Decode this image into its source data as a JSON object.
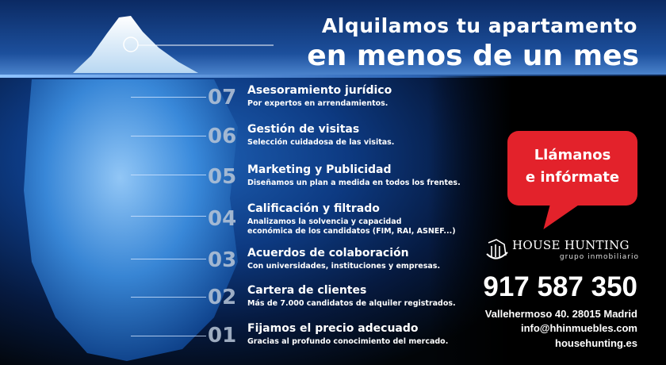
{
  "headline": {
    "line1": "Alquilamos tu apartamento",
    "line2": "en menos de un mes"
  },
  "steps": [
    {
      "number": "07",
      "title": "Asesoramiento jurídico",
      "subtitle": "Por expertos en arrendamientos."
    },
    {
      "number": "06",
      "title": "Gestión de visitas",
      "subtitle": "Selección cuidadosa de las visitas."
    },
    {
      "number": "05",
      "title": "Marketing y Publicidad",
      "subtitle": "Diseñamos un plan a medida  en todos los frentes."
    },
    {
      "number": "04",
      "title": "Calificación y filtrado",
      "subtitle": "Analizamos la solvencia y capacidad",
      "subtitle2": "económica de los candidatos (FIM, RAI, ASNEF...)"
    },
    {
      "number": "03",
      "title": "Acuerdos de colaboración",
      "subtitle": "Con universidades, instituciones y empresas."
    },
    {
      "number": "02",
      "title": "Cartera de clientes",
      "subtitle": "Más de 7.000 candidatos de alquiler registrados."
    },
    {
      "number": "01",
      "title": "Fijamos el precio adecuado",
      "subtitle": "Gracias al profundo conocimiento del mercado."
    }
  ],
  "cta": {
    "line1": "Llámanos",
    "line2": "e infórmate",
    "color": "#e3222b"
  },
  "brand": {
    "name": "HOUSE HUNTING",
    "tagline": "grupo inmobiliario",
    "logo_icon": "house-logo-icon"
  },
  "contact": {
    "phone": "917 587 350",
    "address": "Vallehermoso 40. 28015 Madrid",
    "email": "info@hhinmuebles.com",
    "website": "househunting.es"
  }
}
